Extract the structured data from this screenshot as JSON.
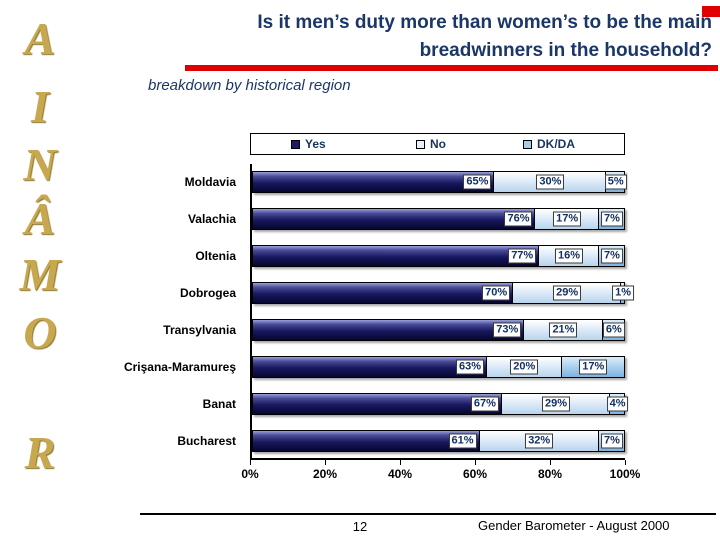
{
  "header": {
    "title_line1": "Is it men’s duty more than women’s to be the main",
    "title_line2": "breadwinners in the household?",
    "subtitle": "breakdown by historical region"
  },
  "sidebar": {
    "letters": [
      "A",
      "I",
      "N",
      "Â",
      "M",
      "O",
      "R"
    ],
    "word": "ROMÂNIA",
    "color": "#C8A84E"
  },
  "accent": {
    "red": "#E00000",
    "navy": "#1B3768"
  },
  "footer": {
    "page_number": "12",
    "source": "Gender Barometer - August 2000"
  },
  "chart_data": {
    "type": "bar",
    "orientation": "horizontal",
    "stacked": true,
    "categories": [
      "Moldavia",
      "Valachia",
      "Oltenia",
      "Dobrogea",
      "Transylvania",
      "Crişana-Maramureş",
      "Banat",
      "Bucharest"
    ],
    "series": [
      {
        "name": "Yes",
        "color": "#14145A",
        "values": [
          65,
          76,
          77,
          70,
          73,
          63,
          67,
          61
        ]
      },
      {
        "name": "No",
        "color": "#DCEBF8",
        "values": [
          30,
          17,
          16,
          29,
          21,
          20,
          29,
          32
        ]
      },
      {
        "name": "DK/DA",
        "color": "#A6CBEC",
        "values": [
          5,
          7,
          7,
          1,
          6,
          17,
          4,
          7
        ]
      }
    ],
    "x_ticks": [
      "0%",
      "20%",
      "40%",
      "60%",
      "80%",
      "100%"
    ],
    "xlim": [
      0,
      100
    ],
    "legend_position": "top",
    "data_label_format": "{value}%",
    "grid": false
  }
}
